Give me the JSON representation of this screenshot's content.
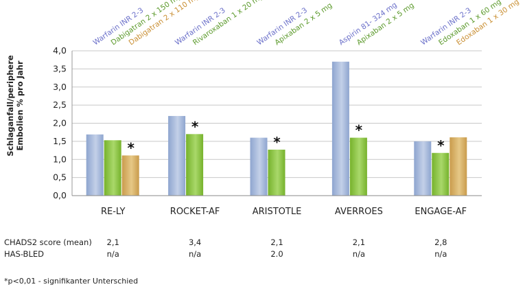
{
  "chart_data": {
    "type": "bar",
    "ylabel": "Schlaganfall/periphere Embolien % pro Jahr",
    "ylim": [
      0,
      4.0
    ],
    "yticks": [
      "0,0",
      "0,5",
      "1,0",
      "1,5",
      "2,0",
      "2,5",
      "3,0",
      "3,5",
      "4,0"
    ],
    "grid": true,
    "groups": [
      {
        "name": "RE-LY",
        "bars": [
          {
            "label": "Warfarin INR 2-3",
            "value": 1.69,
            "color": "blue",
            "star": false
          },
          {
            "label": "Dabigatran 2 x 150 mg",
            "value": 1.53,
            "color": "green",
            "star": false
          },
          {
            "label": "Dabigatran 2 x 110 mg",
            "value": 1.11,
            "color": "tan",
            "star": true
          }
        ]
      },
      {
        "name": "ROCKET-AF",
        "bars": [
          {
            "label": "Warfarin INR 2-3",
            "value": 2.2,
            "color": "blue",
            "star": false
          },
          {
            "label": "Rivaroxaban 1 x 20 mg",
            "value": 1.7,
            "color": "green",
            "star": true
          }
        ]
      },
      {
        "name": "ARISTOTLE",
        "bars": [
          {
            "label": "Warfarin INR 2-3",
            "value": 1.6,
            "color": "blue",
            "star": false
          },
          {
            "label": "Apixaban 2 x 5 mg",
            "value": 1.27,
            "color": "green",
            "star": true
          }
        ]
      },
      {
        "name": "AVERROES",
        "bars": [
          {
            "label": "Aspirin 81- 324 mg",
            "value": 3.7,
            "color": "blue",
            "star": false
          },
          {
            "label": "Apixaban 2 x 5 mg",
            "value": 1.6,
            "color": "green",
            "star": true
          }
        ]
      },
      {
        "name": "ENGAGE-AF",
        "bars": [
          {
            "label": "Warfarin INR 2-3",
            "value": 1.5,
            "color": "blue",
            "star": false
          },
          {
            "label": "Edoxaban 1 x 60 mg",
            "value": 1.18,
            "color": "green",
            "star": true
          },
          {
            "label": "Edoxaban 1 x 30 mg",
            "value": 1.61,
            "color": "tan",
            "star": false
          }
        ]
      }
    ],
    "colors": {
      "blue": "#9fb3d6",
      "green": "#8cc63e",
      "tan": "#d8b46b",
      "label_blue": "#6a6fc9",
      "label_green": "#5c9a2c",
      "label_tan": "#c98f33"
    }
  },
  "table": {
    "rows": [
      {
        "label": "CHADS2 score (mean)",
        "values": [
          "2,1",
          "3,4",
          "2,1",
          "2,1",
          "2,8"
        ]
      },
      {
        "label": "HAS-BLED",
        "values": [
          "n/a",
          "n/a",
          "2.0",
          "n/a",
          "n/a"
        ]
      }
    ]
  },
  "footnote": "*p<0,01 - signifikanter Unterschied"
}
